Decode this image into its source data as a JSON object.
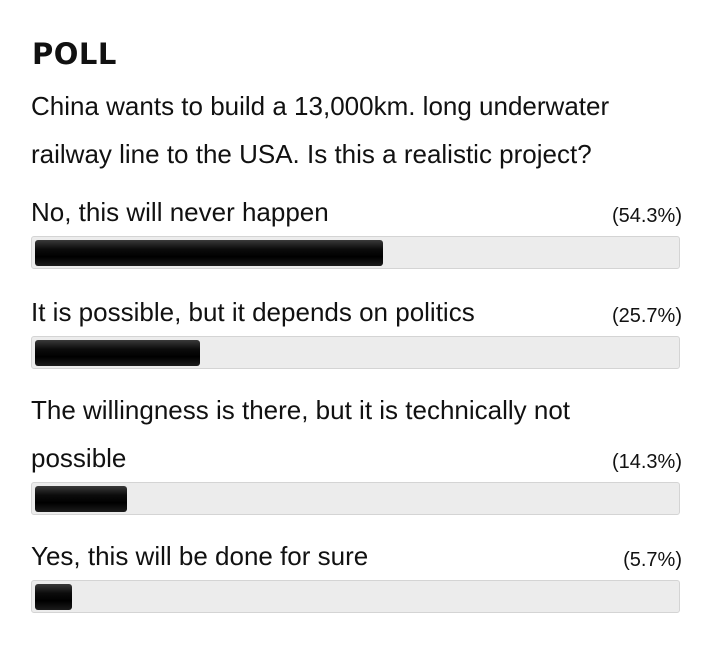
{
  "poll": {
    "title": "POLL",
    "question": "China wants to build a 13,000km. long underwater railway line to the USA. Is this a realistic project?",
    "options": [
      {
        "label": "No, this will never happen",
        "percent_label": "(54.3%)",
        "percent": 54.3
      },
      {
        "label": "It is possible, but it depends on politics",
        "percent_label": "(25.7%)",
        "percent": 25.7
      },
      {
        "label": "The willingness is there, but it is technically not possible",
        "percent_label": "(14.3%)",
        "percent": 14.3
      },
      {
        "label": "Yes, this will be done for sure",
        "percent_label": "(5.7%)",
        "percent": 5.7
      }
    ],
    "bar_color": "#000000",
    "track_color": "#ececec"
  }
}
